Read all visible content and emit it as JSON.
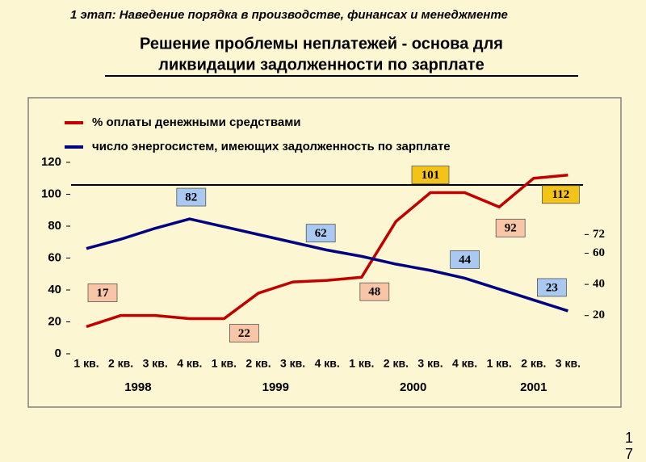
{
  "header": "1 этап: Наведение порядка в производстве, финансах и менеджменте",
  "title": [
    "Решение проблемы неплатежей - основа для",
    "ликвидации задолженности по зарплате"
  ],
  "page_number": "17",
  "chart_data": {
    "type": "line",
    "categories": [
      "1 кв.",
      "2 кв.",
      "3 кв.",
      "4 кв.",
      "1 кв.",
      "2 кв.",
      "3 кв.",
      "4 кв.",
      "1 кв.",
      "2 кв.",
      "3 кв.",
      "4 кв.",
      "1 кв.",
      "2 кв.",
      "3 кв."
    ],
    "years": [
      "1998",
      "1999",
      "2000",
      "2001"
    ],
    "year_quarters": [
      4,
      4,
      4,
      3
    ],
    "series": [
      {
        "name": "% оплаты денежными средствами",
        "color": "#c00000",
        "values": [
          17,
          24,
          24,
          22,
          22,
          38,
          45,
          46,
          48,
          83,
          101,
          101,
          92,
          110,
          112
        ],
        "value_labels": [
          "17",
          null,
          null,
          null,
          "22",
          null,
          null,
          null,
          "48",
          null,
          "101",
          null,
          "92",
          null,
          "112"
        ]
      },
      {
        "name": "число энергосистем, имеющих задолженность по зарплате",
        "color": "#000080",
        "axis": "y2",
        "values": [
          63,
          69,
          76,
          82,
          77,
          72,
          67,
          62,
          58,
          53,
          49,
          44,
          37,
          30,
          23
        ],
        "value_labels": [
          null,
          null,
          null,
          "82",
          null,
          null,
          null,
          "62",
          null,
          null,
          null,
          "44",
          null,
          null,
          "23"
        ]
      }
    ],
    "ylim": [
      0,
      120
    ],
    "yticks": [
      0,
      20,
      40,
      60,
      80,
      100,
      120
    ],
    "y2lim": [
      -4.5,
      118.3
    ],
    "y2ticks": [
      20,
      40,
      60,
      72
    ]
  }
}
